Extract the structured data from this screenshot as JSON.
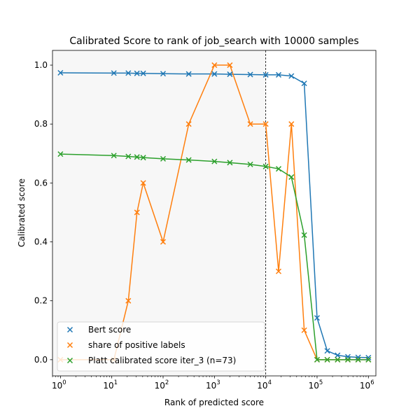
{
  "chart_data": {
    "type": "line",
    "title": "Calibrated Score to rank of job_search with 10000 samples",
    "xlabel": "Rank of predicted score",
    "ylabel": "Calibrated score",
    "xscale": "log",
    "xlim": [
      0.7,
      1400000
    ],
    "ylim": [
      -0.055,
      1.05
    ],
    "x_ticks": [
      {
        "value": 1,
        "base": "10",
        "exp": "0"
      },
      {
        "value": 10,
        "base": "10",
        "exp": "1"
      },
      {
        "value": 100,
        "base": "10",
        "exp": "2"
      },
      {
        "value": 1000,
        "base": "10",
        "exp": "3"
      },
      {
        "value": 10000,
        "base": "10",
        "exp": "4"
      },
      {
        "value": 100000,
        "base": "10",
        "exp": "5"
      },
      {
        "value": 1000000,
        "base": "10",
        "exp": "6"
      }
    ],
    "y_ticks": [
      {
        "value": 0.0,
        "label": "0.0"
      },
      {
        "value": 0.2,
        "label": "0.2"
      },
      {
        "value": 0.4,
        "label": "0.4"
      },
      {
        "value": 0.6,
        "label": "0.6"
      },
      {
        "value": 0.8,
        "label": "0.8"
      },
      {
        "value": 1.0,
        "label": "1.0"
      }
    ],
    "grid": false,
    "shaded_region": {
      "x": [
        0.7,
        10000
      ],
      "color": "#f7f7f7"
    },
    "vline": {
      "x": 10000,
      "style": "dashed",
      "color": "#000000"
    },
    "legend_position": "lower-left",
    "series": [
      {
        "name": "Bert score",
        "color": "#1f77b4",
        "marker": "x",
        "x": [
          1,
          11,
          21,
          31,
          41,
          100,
          316,
          1000,
          2000,
          5000,
          10000,
          17800,
          31600,
          56200,
          100000,
          158000,
          251000,
          398000,
          631000,
          1000000
        ],
        "y": [
          0.974,
          0.973,
          0.973,
          0.972,
          0.972,
          0.971,
          0.97,
          0.97,
          0.969,
          0.968,
          0.967,
          0.967,
          0.963,
          0.938,
          0.142,
          0.03,
          0.015,
          0.01,
          0.008,
          0.007
        ]
      },
      {
        "name": "share of positive labels",
        "color": "#ff7f0e",
        "marker": "x",
        "x": [
          1,
          11,
          21,
          31,
          41,
          100,
          316,
          1000,
          2000,
          5000,
          10000,
          17800,
          31600,
          56200,
          100000,
          158000,
          251000,
          398000,
          631000,
          1000000
        ],
        "y": [
          0.0,
          0.0,
          0.2,
          0.5,
          0.6,
          0.4,
          0.8,
          1.0,
          1.0,
          0.8,
          0.8,
          0.3,
          0.8,
          0.1,
          0.0,
          0.0,
          0.0,
          0.0,
          0.0,
          0.0
        ]
      },
      {
        "name": "Platt calibrated score iter_3 (n=73)",
        "color": "#2ca02c",
        "marker": "x",
        "x": [
          1,
          11,
          21,
          31,
          41,
          100,
          316,
          1000,
          2000,
          5000,
          10000,
          17800,
          31600,
          56200,
          100000,
          158000,
          251000,
          398000,
          631000,
          1000000
        ],
        "y": [
          0.698,
          0.693,
          0.69,
          0.688,
          0.686,
          0.682,
          0.678,
          0.673,
          0.669,
          0.663,
          0.656,
          0.648,
          0.62,
          0.423,
          0.0,
          0.0,
          0.0,
          0.0,
          0.0,
          0.0
        ]
      }
    ]
  }
}
